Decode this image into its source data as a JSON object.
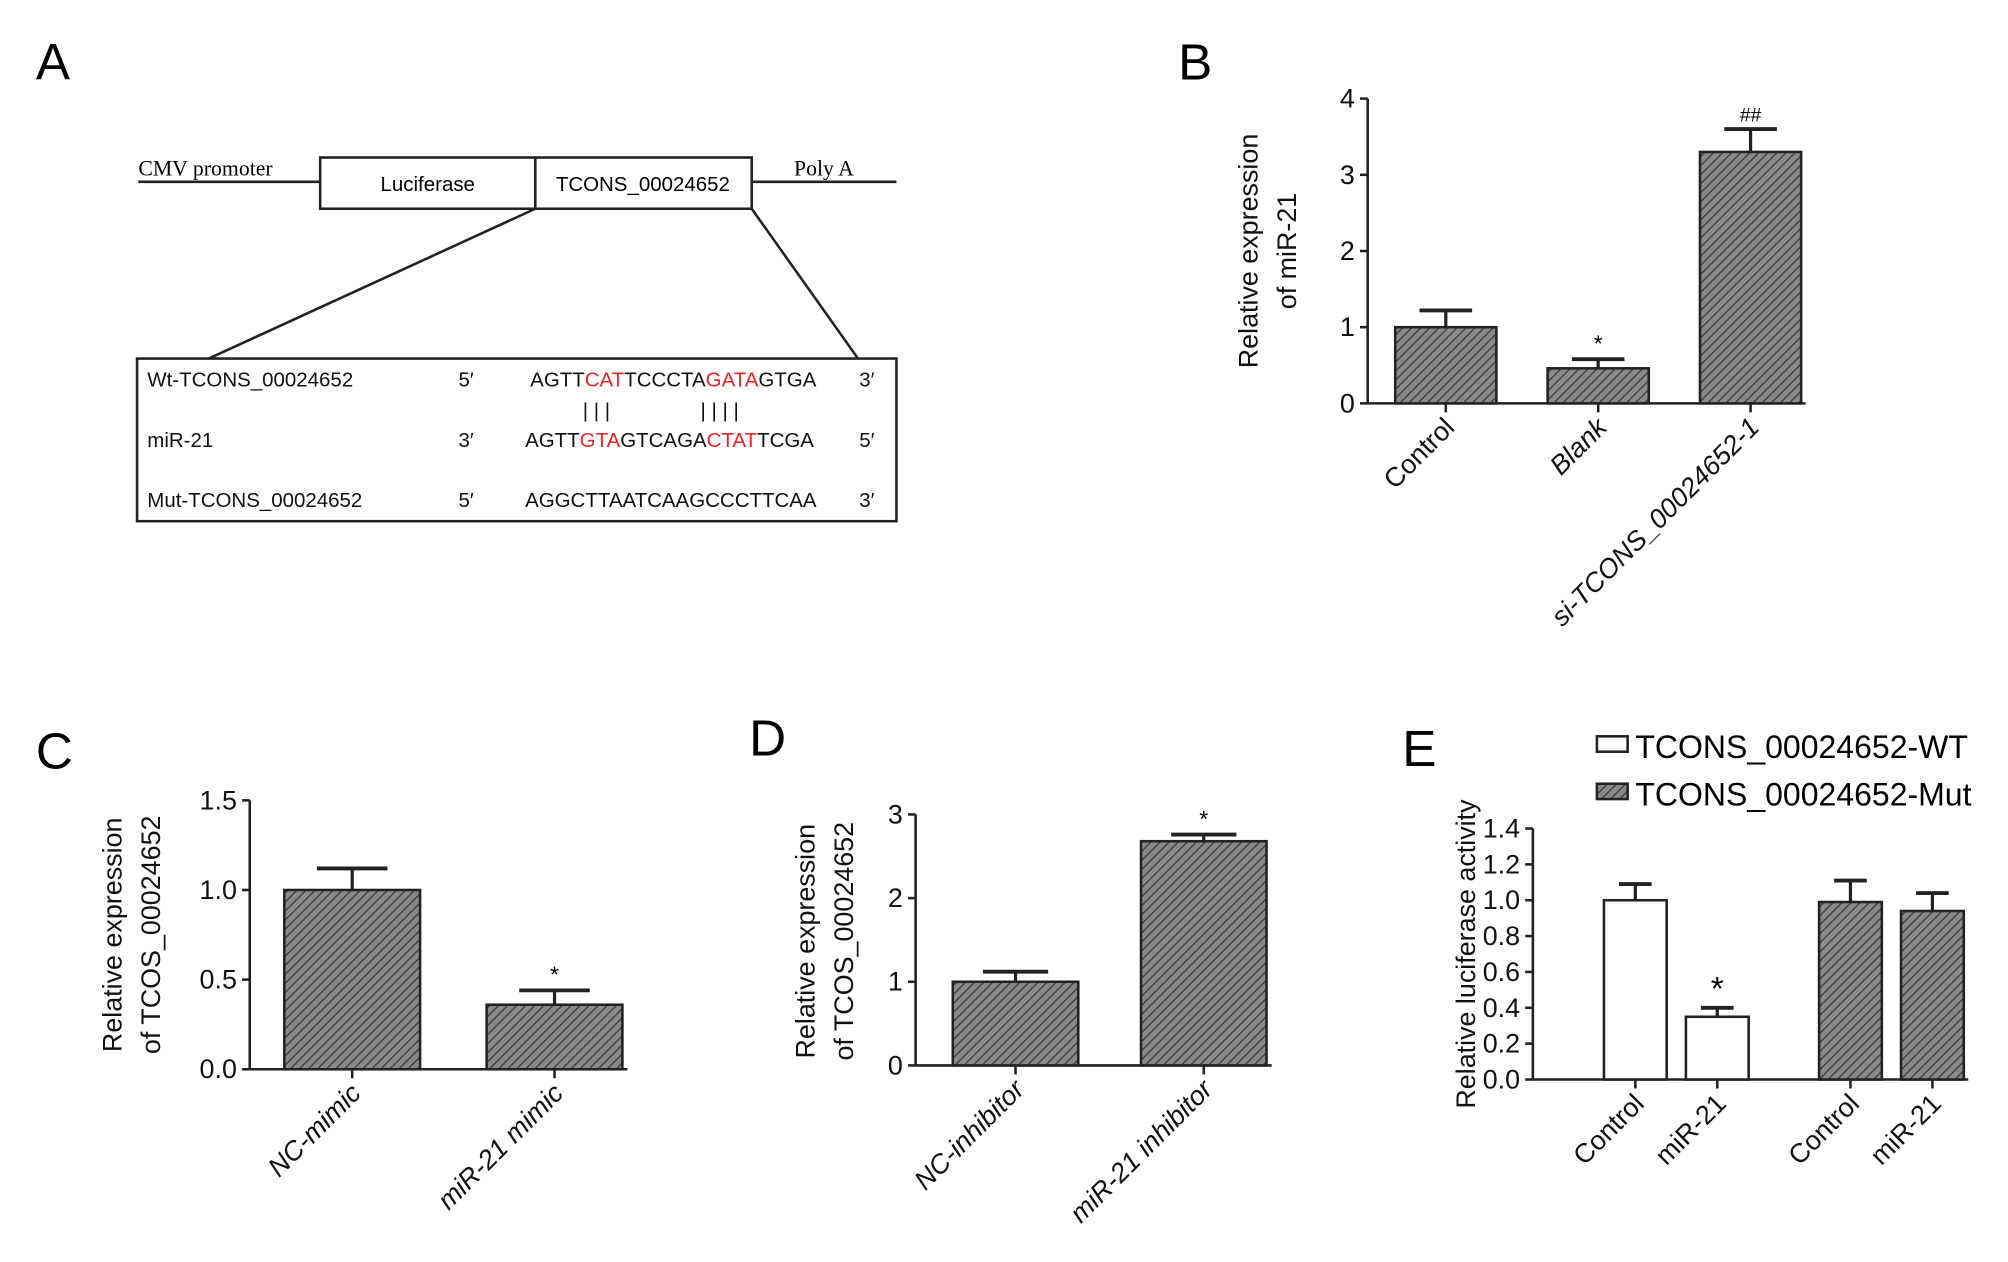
{
  "colors": {
    "bar_fill": "#8a8a8a",
    "hatch": "#3a3a3a",
    "highlight": "#e8262a",
    "outline": "#222222",
    "wt_fill": "#ffffff"
  },
  "panel_a": {
    "label": "A",
    "cmv": "CMV promoter",
    "luciferase": "Luciferase",
    "tcons": "TCONS_00024652",
    "polya": "Poly A",
    "rows": [
      {
        "name": "Wt-TCONS_00024652",
        "end5": "5′",
        "end3": "3′",
        "segments": [
          {
            "t": "AGTT",
            "hl": false
          },
          {
            "t": "CAT",
            "hl": true
          },
          {
            "t": "TCCCTA",
            "hl": false
          },
          {
            "t": "GATA",
            "hl": true
          },
          {
            "t": "GTGA",
            "hl": false
          }
        ]
      },
      {
        "name": "miR-21",
        "end5": "3′",
        "end3": "5′",
        "segments": [
          {
            "t": "AGTT",
            "hl": false
          },
          {
            "t": "GTA",
            "hl": true
          },
          {
            "t": "GTCAGA",
            "hl": false
          },
          {
            "t": "CTAT",
            "hl": true
          },
          {
            "t": "TCGA",
            "hl": false
          }
        ]
      },
      {
        "name": "Mut-TCONS_00024652",
        "end5": "5′",
        "end3": "3′",
        "segments": [
          {
            "t": "AGGCTTAATCAAGCCCTTCAA",
            "hl": false
          }
        ]
      }
    ],
    "pairing_marks": [
      "| | |",
      "| | | |"
    ]
  },
  "chart_data": [
    {
      "panel": "B",
      "type": "bar",
      "ylabel": [
        "Relative expression",
        "of miR-21"
      ],
      "categories": [
        "Control",
        "Blank",
        "si-TCONS_00024652-1"
      ],
      "values": [
        1.0,
        0.46,
        3.3
      ],
      "error_upper": [
        1.22,
        0.58,
        3.6
      ],
      "annotations": [
        "",
        "*",
        "##"
      ],
      "ylim": [
        0,
        4
      ],
      "yticks": [
        "0",
        "1",
        "2",
        "3",
        "4"
      ],
      "ytick_values": [
        0,
        1,
        2,
        3,
        4
      ],
      "fill": [
        "hatched",
        "hatched",
        "hatched"
      ]
    },
    {
      "panel": "C",
      "type": "bar",
      "ylabel": [
        "Relative expression",
        "of TCOS_00024652"
      ],
      "categories": [
        "NC-mimic",
        "miR-21 mimic"
      ],
      "values": [
        1.0,
        0.36
      ],
      "error_upper": [
        1.12,
        0.44
      ],
      "annotations": [
        "",
        "*"
      ],
      "ylim": [
        0,
        1.5
      ],
      "yticks": [
        "0.0",
        "0.5",
        "1.0",
        "1.5"
      ],
      "ytick_values": [
        0,
        0.5,
        1.0,
        1.5
      ],
      "fill": [
        "hatched",
        "hatched"
      ]
    },
    {
      "panel": "D",
      "type": "bar",
      "ylabel": [
        "Relative expression",
        "of TCOS_00024652"
      ],
      "categories": [
        "NC-inhibitor",
        "miR-21 inhibitor"
      ],
      "values": [
        1.0,
        2.68
      ],
      "error_upper": [
        1.12,
        2.76
      ],
      "annotations": [
        "",
        "*"
      ],
      "ylim": [
        0,
        3
      ],
      "yticks": [
        "0",
        "1",
        "2",
        "3"
      ],
      "ytick_values": [
        0,
        1,
        2,
        3
      ],
      "fill": [
        "hatched",
        "hatched"
      ]
    },
    {
      "panel": "E",
      "type": "bar",
      "ylabel": [
        "Relative luciferase activity"
      ],
      "categories": [
        "Control",
        "miR-21",
        "Control",
        "miR-21"
      ],
      "series_of_bar": [
        "TCONS_00024652-WT",
        "TCONS_00024652-WT",
        "TCONS_00024652-Mut",
        "TCONS_00024652-Mut"
      ],
      "values": [
        1.0,
        0.35,
        0.99,
        0.94
      ],
      "error_upper": [
        1.09,
        0.4,
        1.11,
        1.04
      ],
      "annotations": [
        "",
        "*",
        "",
        ""
      ],
      "ylim": [
        0,
        1.4
      ],
      "yticks": [
        "0.0",
        "0.2",
        "0.4",
        "0.6",
        "0.8",
        "1.0",
        "1.2",
        "1.4"
      ],
      "ytick_values": [
        0,
        0.2,
        0.4,
        0.6,
        0.8,
        1.0,
        1.2,
        1.4
      ],
      "fill": [
        "open",
        "open",
        "hatched",
        "hatched"
      ],
      "legend": [
        {
          "name": "TCONS_00024652-WT",
          "fill": "open"
        },
        {
          "name": "TCONS_00024652-Mut",
          "fill": "hatched"
        }
      ],
      "legend_position": "top-right"
    }
  ]
}
